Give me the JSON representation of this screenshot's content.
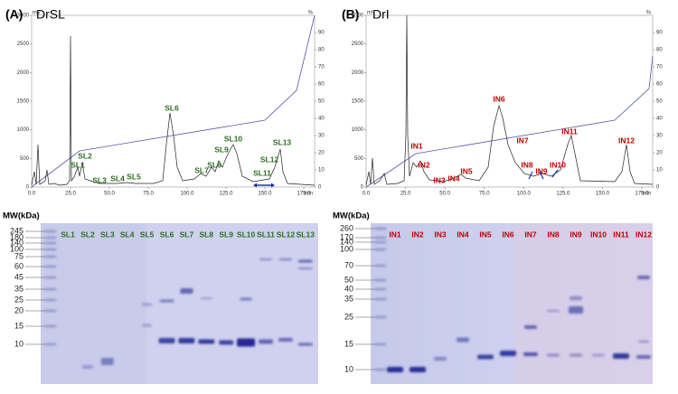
{
  "panels": [
    {
      "label": "(A)",
      "name": "DrSL",
      "chromatogram": {
        "y_unit": "mV",
        "y2_unit": "%",
        "x_unit": "min",
        "yticks": [
          "0",
          "500",
          "1000",
          "1500",
          "2000",
          "2500",
          "3000"
        ],
        "y2ticks": [
          "0",
          "10",
          "20",
          "30",
          "40",
          "50",
          "60",
          "70",
          "80",
          "90"
        ],
        "xticks": [
          "0.0",
          "25.0",
          "50.0",
          "75.0",
          "100.0",
          "125.0",
          "150.0",
          "175.0"
        ],
        "peaks": [
          "SL1",
          "SL2",
          "SL3",
          "SL4",
          "SL5",
          "SL6",
          "SL7",
          "SL8",
          "SL9",
          "SL10",
          "SL11",
          "SL12",
          "SL13"
        ]
      },
      "gel": {
        "mw_title": "MW(kDa)",
        "mw": [
          "245",
          "180",
          "140",
          "100",
          "75",
          "60",
          "45",
          "35",
          "25",
          "20",
          "15",
          "10"
        ],
        "lanes": [
          "SL1",
          "SL2",
          "SL3",
          "SL4",
          "SL5",
          "SL6",
          "SL7",
          "SL8",
          "SL9",
          "SL10",
          "SL11",
          "SL12",
          "SL13"
        ]
      }
    },
    {
      "label": "(B)",
      "name": "DrI",
      "chromatogram": {
        "y_unit": "mV",
        "y2_unit": "%",
        "x_unit": "min",
        "yticks": [
          "0",
          "500",
          "1000",
          "1500",
          "2000",
          "2500",
          "3000"
        ],
        "y2ticks": [
          "0",
          "10",
          "20",
          "30",
          "40",
          "50",
          "60",
          "70",
          "80",
          "90"
        ],
        "xticks": [
          "0.0",
          "25.0",
          "50.0",
          "75.0",
          "100.0",
          "125.0",
          "150.0",
          "175.0"
        ],
        "peaks": [
          "IN1",
          "IN2",
          "IN3",
          "IN4",
          "IN5",
          "IN6",
          "IN7",
          "IN8",
          "IN9",
          "IN10",
          "IN11",
          "IN12"
        ]
      },
      "gel": {
        "mw_title": "MW(kDa)",
        "mw": [
          "260",
          "170",
          "140",
          "100",
          "70",
          "50",
          "40",
          "35",
          "25",
          "15",
          "10"
        ],
        "lanes": [
          "IN1",
          "IN2",
          "IN3",
          "IN4",
          "IN5",
          "IN6",
          "IN7",
          "IN8",
          "IN9",
          "IN10",
          "IN11",
          "IN12"
        ]
      }
    }
  ]
}
